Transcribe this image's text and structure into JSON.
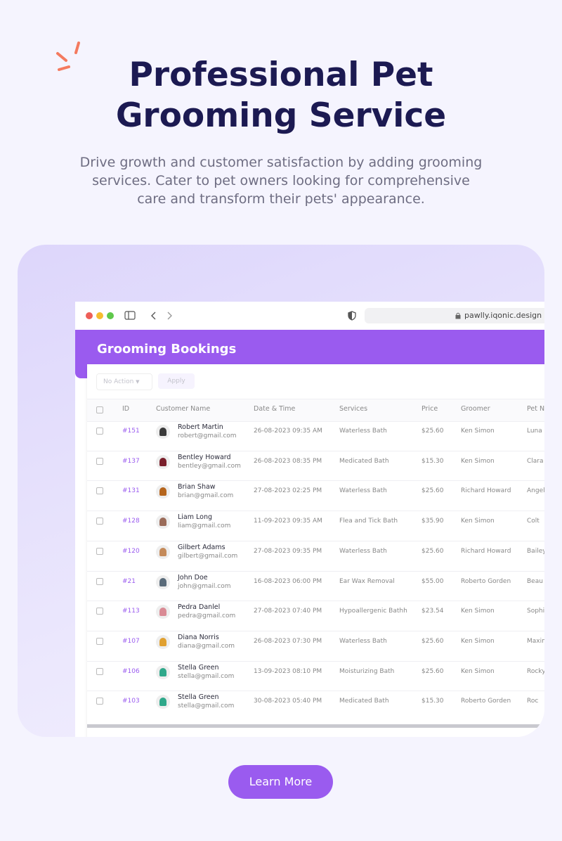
{
  "header": {
    "title_lines": [
      "Professional Pet",
      "Grooming Service"
    ],
    "subtitle_lines": [
      "Drive growth and customer satisfaction by adding grooming",
      "services. Cater to pet owners looking for comprehensive",
      "care and transform their pets' appearance."
    ]
  },
  "browser": {
    "url": "pawlly.iqonic.design"
  },
  "app": {
    "page_title": "Grooming Bookings",
    "action_select": "No Action",
    "apply_button": "Apply",
    "table": {
      "headers": [
        "ID",
        "Customer Name",
        "Date & Time",
        "Services",
        "Price",
        "Groomer",
        "Pet Na"
      ],
      "rows": [
        [
          "#151",
          "Robert Martin",
          "robert@gmail.com",
          "26-08-2023 09:35 AM",
          "Waterless Bath",
          "$25.60",
          "Ken Simon",
          "Luna"
        ],
        [
          "#137",
          "Bentley Howard",
          "bentley@gmail.com",
          "26-08-2023 08:35 PM",
          "Medicated Bath",
          "$15.30",
          "Ken Simon",
          "Clara"
        ],
        [
          "#131",
          "Brian Shaw",
          "brian@gmail.com",
          "27-08-2023 02:25 PM",
          "Waterless Bath",
          "$25.60",
          "Richard Howard",
          "Angel"
        ],
        [
          "#128",
          "Liam Long",
          "liam@gmail.com",
          "11-09-2023 09:35 AM",
          "Flea and Tick Bath",
          "$35.90",
          "Ken Simon",
          "Colt"
        ],
        [
          "#120",
          "Gilbert Adams",
          "gilbert@gmail.com",
          "27-08-2023 09:35 PM",
          "Waterless Bath",
          "$25.60",
          "Richard Howard",
          "Bailey"
        ],
        [
          "#21",
          "John Doe",
          "john@gmail.com",
          "16-08-2023 06:00 PM",
          "Ear Wax Removal",
          "$55.00",
          "Roberto Gorden",
          "Beau"
        ],
        [
          "#113",
          "Pedra Danlel",
          "pedra@gmail.com",
          "27-08-2023 07:40 PM",
          "Hypoallergenic Bathh",
          "$23.54",
          "Ken Simon",
          "Sophi"
        ],
        [
          "#107",
          "Diana Norris",
          "diana@gmail.com",
          "26-08-2023 07:30 PM",
          "Waterless Bath",
          "$25.60",
          "Ken Simon",
          "Maxim"
        ],
        [
          "#106",
          "Stella Green",
          "stella@gmail.com",
          "13-09-2023 08:10 PM",
          "Moisturizing Bath",
          "$25.60",
          "Ken Simon",
          "Rocky"
        ],
        [
          "#103",
          "Stella Green",
          "stella@gmail.com",
          "30-08-2023 05:40 PM",
          "Medicated Bath",
          "$15.30",
          "Roberto Gorden",
          "Roc"
        ]
      ]
    }
  },
  "footer": {
    "button": "Learn More"
  }
}
